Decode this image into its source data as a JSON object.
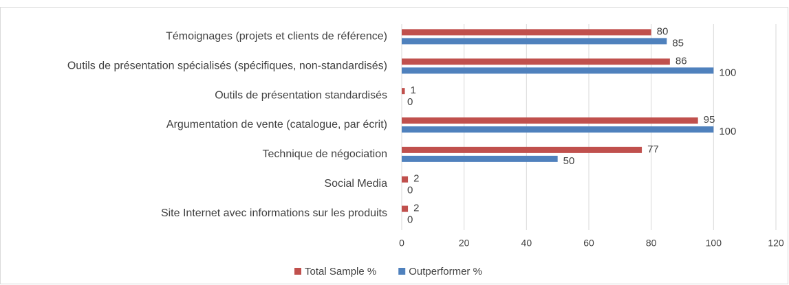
{
  "chart_data": {
    "type": "bar",
    "orientation": "horizontal",
    "categories": [
      "Témoignages (projets et clients de référence)",
      "Outils de présentation spécialisés (spécifiques, non-standardisés)",
      "Outils de présentation standardisés",
      "Argumentation de vente (catalogue, par écrit)",
      "Technique de négociation",
      "Social Media",
      "Site Internet avec informations sur les produits"
    ],
    "series": [
      {
        "name": "Total Sample %",
        "color": "#c0504d",
        "values": [
          80,
          86,
          1,
          95,
          77,
          2,
          2
        ]
      },
      {
        "name": "Outperformer %",
        "color": "#4f81bd",
        "values": [
          85,
          100,
          0,
          100,
          50,
          0,
          0
        ]
      }
    ],
    "xlim": [
      0,
      120
    ],
    "xticks": [
      0,
      20,
      40,
      60,
      80,
      100,
      120
    ],
    "grid": true,
    "legend": "bottom"
  }
}
